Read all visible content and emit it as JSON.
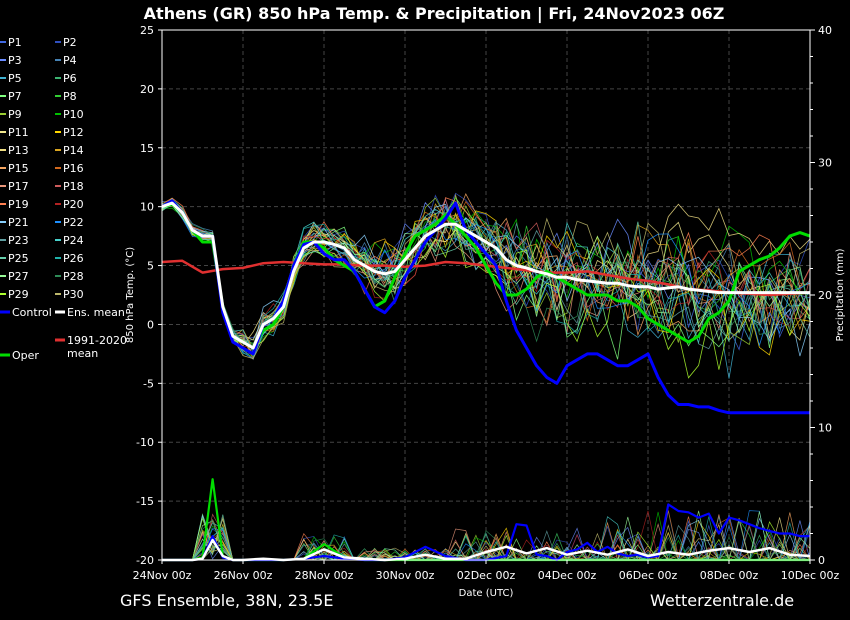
{
  "title": "Athens  (GR)  850 hPa Temp. & Precipitation | Fri, 24Nov2023 06Z",
  "footer_left": "GFS Ensemble, 38N, 23.5E",
  "footer_right": "Wetterzentrale.de",
  "chart_data": {
    "type": "line",
    "xlabel": "Date (UTC)",
    "ylabel_left": "850 hPa Temp. (°C)",
    "ylabel_right": "Precipitation (mm)",
    "x_ticks": [
      "24Nov 00z",
      "26Nov 00z",
      "28Nov 00z",
      "30Nov 00z",
      "02Dec 00z",
      "04Dec 00z",
      "06Dec 00z",
      "08Dec 00z",
      "10Dec 00z"
    ],
    "x_range_hours": [
      0,
      384
    ],
    "ylim_left": [
      -20,
      25
    ],
    "yticks_left": [
      25,
      20,
      15,
      10,
      5,
      0,
      -5,
      -10,
      -15,
      -20
    ],
    "ylim_right": [
      0,
      40
    ],
    "yticks_right": [
      40,
      30,
      20,
      10,
      0
    ],
    "grid": true,
    "legend_placement": "left",
    "legend": [
      {
        "label": "P1",
        "color": "#4169e1"
      },
      {
        "label": "P2",
        "color": "#3050c0"
      },
      {
        "label": "P3",
        "color": "#6a8cff"
      },
      {
        "label": "P4",
        "color": "#4682b4"
      },
      {
        "label": "P5",
        "color": "#40b0d0"
      },
      {
        "label": "P6",
        "color": "#3cb371"
      },
      {
        "label": "P7",
        "color": "#7fff7f"
      },
      {
        "label": "P8",
        "color": "#32cd32"
      },
      {
        "label": "P9",
        "color": "#9acd32"
      },
      {
        "label": "P10",
        "color": "#00c000"
      },
      {
        "label": "P11",
        "color": "#f0e68c"
      },
      {
        "label": "P12",
        "color": "#ffd700"
      },
      {
        "label": "P13",
        "color": "#eedd82"
      },
      {
        "label": "P14",
        "color": "#daa520"
      },
      {
        "label": "P15",
        "color": "#f4a460"
      },
      {
        "label": "P16",
        "color": "#d2691e"
      },
      {
        "label": "P17",
        "color": "#e9967a"
      },
      {
        "label": "P18",
        "color": "#cd5c5c"
      },
      {
        "label": "P19",
        "color": "#ff7f50"
      },
      {
        "label": "P20",
        "color": "#b22222"
      },
      {
        "label": "P21",
        "color": "#87cefa"
      },
      {
        "label": "P22",
        "color": "#1e90ff"
      },
      {
        "label": "P23",
        "color": "#5f9ea0"
      },
      {
        "label": "P24",
        "color": "#48d1cc"
      },
      {
        "label": "P25",
        "color": "#66cdaa"
      },
      {
        "label": "P26",
        "color": "#20b2aa"
      },
      {
        "label": "P27",
        "color": "#98fb98"
      },
      {
        "label": "P28",
        "color": "#2e8b57"
      },
      {
        "label": "P29",
        "color": "#adff2f"
      },
      {
        "label": "P30",
        "color": "#bdb76b"
      },
      {
        "label": "Control",
        "color": "#0000ff"
      },
      {
        "label": "Ens. mean",
        "color": "#ffffff"
      },
      {
        "label": "1991-2020 mean",
        "color": "#e03030"
      },
      {
        "label": "Oper",
        "color": "#00dd00"
      }
    ],
    "series": [
      {
        "name": "Control",
        "axis": "left",
        "color": "#0000ff",
        "x": [
          0,
          6,
          12,
          18,
          24,
          30,
          36,
          42,
          48,
          54,
          60,
          66,
          72,
          78,
          84,
          90,
          96,
          102,
          108,
          114,
          120,
          126,
          132,
          138,
          144,
          150,
          156,
          162,
          168,
          174,
          180,
          186,
          192,
          198,
          204,
          210,
          216,
          222,
          228,
          234,
          240,
          246,
          252,
          258,
          264,
          270,
          276,
          282,
          288,
          294,
          300,
          306,
          312,
          318,
          324,
          330,
          336,
          342,
          348,
          354,
          360,
          366,
          372,
          378,
          384
        ],
        "y": [
          10,
          10.5,
          9.5,
          8,
          7.5,
          7.5,
          1,
          -1.5,
          -2,
          -2.5,
          0,
          0.5,
          2,
          5,
          6.8,
          7,
          6,
          5.5,
          5.5,
          4.5,
          3,
          1.5,
          1,
          2,
          4,
          5.5,
          7,
          8,
          9,
          10.3,
          8,
          7,
          6,
          5,
          2,
          -0.5,
          -2,
          -3.5,
          -4.5,
          -5,
          -3.5,
          -3,
          -2.5,
          -2.5,
          -3,
          -3.5,
          -3.5,
          -3,
          -2.5,
          -4.5,
          -6,
          -6.8,
          -6.8,
          -7,
          -7,
          -7.3,
          -7.5,
          -7.5,
          -7.5,
          -7.5,
          -7.5,
          -7.5,
          -7.5,
          -7.5,
          -7.5
        ]
      },
      {
        "name": "Ens. mean",
        "axis": "left",
        "color": "#ffffff",
        "x": [
          0,
          6,
          12,
          18,
          24,
          30,
          36,
          42,
          48,
          54,
          60,
          66,
          72,
          78,
          84,
          90,
          96,
          102,
          108,
          114,
          120,
          126,
          132,
          138,
          144,
          150,
          156,
          162,
          168,
          174,
          180,
          186,
          192,
          198,
          204,
          210,
          216,
          222,
          228,
          234,
          240,
          246,
          252,
          258,
          264,
          270,
          276,
          282,
          288,
          294,
          300,
          306,
          312,
          318,
          324,
          330,
          336,
          342,
          348,
          354,
          360,
          366,
          372,
          378,
          384
        ],
        "y": [
          10,
          10.3,
          9.5,
          8,
          7.5,
          7.5,
          1.5,
          -1,
          -1.5,
          -2,
          0,
          0.5,
          1.5,
          4.5,
          6.5,
          7,
          7,
          6.8,
          6.5,
          5.5,
          5,
          4.5,
          4.3,
          4.5,
          5.5,
          6.5,
          7.5,
          8,
          8.5,
          8.5,
          8,
          7.5,
          7,
          6.5,
          5.5,
          5,
          4.8,
          4.5,
          4.3,
          4,
          4,
          3.8,
          3.7,
          3.6,
          3.5,
          3.5,
          3.3,
          3.2,
          3.2,
          3,
          3.1,
          3.2,
          3,
          2.9,
          2.8,
          2.7,
          2.7,
          2.7,
          2.7,
          2.7,
          2.7,
          2.7,
          2.7,
          2.7,
          2.7
        ]
      },
      {
        "name": "1991-2020 mean",
        "axis": "left",
        "color": "#e03030",
        "x": [
          0,
          12,
          24,
          36,
          48,
          60,
          72,
          84,
          96,
          108,
          120,
          132,
          144,
          156,
          168,
          180,
          192,
          204,
          216,
          228,
          240,
          252,
          264,
          276,
          288,
          300,
          312,
          324,
          336,
          348,
          360,
          372,
          384
        ],
        "y": [
          5.3,
          5.4,
          4.4,
          4.7,
          4.8,
          5.2,
          5.3,
          5.2,
          5.1,
          5.1,
          5.0,
          5.0,
          4.9,
          5.0,
          5.3,
          5.2,
          5.0,
          4.8,
          4.6,
          4.4,
          4.4,
          4.5,
          4.2,
          3.9,
          3.7,
          3.4,
          3.0,
          2.9,
          2.7,
          2.6,
          2.5,
          2.6,
          2.7
        ]
      },
      {
        "name": "Oper",
        "axis": "left",
        "color": "#00dd00",
        "x": [
          0,
          6,
          12,
          18,
          24,
          30,
          36,
          42,
          48,
          54,
          60,
          66,
          72,
          78,
          84,
          90,
          96,
          102,
          108,
          114,
          120,
          126,
          132,
          138,
          144,
          150,
          156,
          162,
          168,
          174,
          180,
          186,
          192,
          198,
          204,
          210,
          216,
          222,
          228,
          234,
          240,
          246,
          252,
          258,
          264,
          270,
          276,
          282,
          288,
          294,
          300,
          306,
          312,
          318,
          324,
          330,
          336,
          342,
          348,
          354,
          360,
          366,
          372,
          378,
          384
        ],
        "y": [
          10,
          10.2,
          9.5,
          8,
          7,
          7,
          1.5,
          -1,
          -1.5,
          -2,
          -0.5,
          0,
          1.5,
          5,
          7,
          7,
          6.5,
          5.5,
          5,
          4.5,
          3,
          1.5,
          2,
          4,
          6,
          7.5,
          8,
          8.5,
          9.3,
          8.5,
          7.5,
          6.5,
          5,
          3.5,
          2.5,
          2.5,
          3,
          4,
          4.5,
          4,
          3.5,
          3,
          2.5,
          2.5,
          2.5,
          2,
          2,
          1.5,
          0.5,
          0,
          -0.5,
          -1,
          -1.5,
          -1,
          0.5,
          1,
          2,
          4.5,
          5,
          5.5,
          5.8,
          6.5,
          7.5,
          7.8,
          7.5
        ]
      },
      {
        "name": "Ens. mean precipitation",
        "axis": "right",
        "color": "#ffffff",
        "x": [
          0,
          18,
          24,
          30,
          36,
          42,
          48,
          60,
          72,
          84,
          96,
          108,
          120,
          132,
          144,
          156,
          168,
          180,
          192,
          204,
          216,
          228,
          240,
          252,
          264,
          276,
          288,
          300,
          312,
          324,
          336,
          348,
          360,
          372,
          384
        ],
        "y": [
          0,
          0,
          0.1,
          1.5,
          0.3,
          0,
          0,
          0.1,
          0,
          0.1,
          0.8,
          0.2,
          0.1,
          0,
          0.1,
          0.4,
          0.1,
          0.1,
          0.6,
          1.0,
          0.5,
          0.9,
          0.4,
          0.7,
          0.4,
          0.8,
          0.3,
          0.6,
          0.4,
          0.7,
          0.9,
          0.6,
          0.9,
          0.4,
          0.3
        ]
      },
      {
        "name": "Control precipitation",
        "axis": "right",
        "color": "#0000ff",
        "x": [
          0,
          18,
          24,
          30,
          36,
          42,
          48,
          60,
          72,
          84,
          96,
          108,
          120,
          132,
          144,
          156,
          168,
          180,
          192,
          204,
          210,
          216,
          222,
          228,
          234,
          240,
          246,
          252,
          258,
          264,
          270,
          276,
          282,
          288,
          294,
          300,
          306,
          312,
          318,
          324,
          330,
          336,
          342,
          348,
          354,
          360,
          366,
          372,
          378,
          384
        ],
        "y": [
          0,
          0,
          0.1,
          1.8,
          0.2,
          0,
          0,
          0,
          0,
          0.1,
          0.3,
          0.1,
          0,
          0,
          0.2,
          1.0,
          0.3,
          0,
          0,
          0.3,
          2.7,
          2.6,
          0.4,
          0.3,
          0,
          0.6,
          0.8,
          1.3,
          0.6,
          1.0,
          0.5,
          0.3,
          0.4,
          0.2,
          0.3,
          4.2,
          3.7,
          3.6,
          3.2,
          3.5,
          2.0,
          3.2,
          3.0,
          2.7,
          2.4,
          2.2,
          2.0,
          2.0,
          1.8,
          1.8
        ]
      },
      {
        "name": "Oper precipitation",
        "axis": "right",
        "color": "#00dd00",
        "x": [
          0,
          18,
          24,
          30,
          36,
          42,
          48,
          60,
          72,
          84,
          96,
          108,
          120,
          132,
          144,
          156,
          168,
          180,
          192,
          204,
          216,
          228,
          240,
          252,
          264,
          276,
          288,
          300,
          312,
          324,
          336,
          348,
          360,
          372,
          384
        ],
        "y": [
          0,
          0,
          0.2,
          6.1,
          0.3,
          0,
          0,
          0,
          0,
          0.1,
          1.2,
          0.2,
          0,
          0,
          0,
          0,
          0,
          0,
          0,
          0,
          0,
          0,
          0,
          0,
          0,
          0,
          0,
          0,
          0,
          0,
          0,
          0,
          0,
          0,
          0
        ]
      }
    ]
  }
}
